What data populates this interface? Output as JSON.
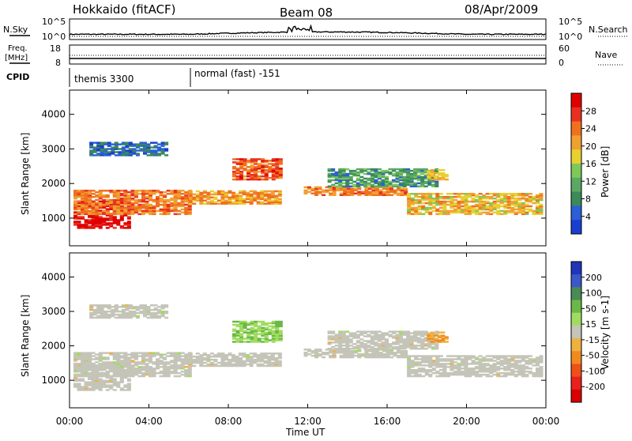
{
  "header": {
    "station": "Hokkaido (fitACF)",
    "beam": "Beam 08",
    "date": "08/Apr/2009"
  },
  "top_panels": {
    "nsky_label": "N.Sky",
    "nsearch_label": "N.Search",
    "log_top": "10^5",
    "log_bottom": "10^0",
    "freq_label_1": "Freq.",
    "freq_label_2": "[MHz]",
    "freq_ticks": [
      "18",
      "8"
    ],
    "nave_label": "Nave",
    "nave_ticks": [
      "60",
      "0"
    ],
    "cpid_label": "CPID",
    "cpid_1": "themis 3300",
    "cpid_2": "normal (fast) -151"
  },
  "colors": {
    "power": [
      "#1a3fd0",
      "#2b5fd8",
      "#3a8a5a",
      "#5aa862",
      "#7ec85a",
      "#e8d030",
      "#f0a030",
      "#f07020",
      "#e83020",
      "#e00000"
    ],
    "velocity": [
      "#2035b8",
      "#3a58c8",
      "#4a8a55",
      "#6ab848",
      "#a0dc60",
      "#c4c4b8",
      "#f0b040",
      "#f08a20",
      "#ee5018",
      "#e82020",
      "#d80000"
    ]
  },
  "chart_data": [
    {
      "type": "heatmap",
      "title": "Power",
      "ylabel": "Slant Range [km]",
      "xlabel": "Time UT",
      "x_ticks": [
        "00:00",
        "04:00",
        "08:00",
        "12:00",
        "16:00",
        "20:00",
        "00:00"
      ],
      "y_ticks": [
        "1000",
        "2000",
        "3000",
        "4000"
      ],
      "ylim": [
        200,
        4700
      ],
      "xlim_hours": [
        0,
        24
      ],
      "colorbar_label": "Power [dB]",
      "colorbar_ticks": [
        "4",
        "8",
        "12",
        "16",
        "20",
        "24",
        "28"
      ],
      "crange": [
        0,
        30
      ]
    },
    {
      "type": "heatmap",
      "title": "Velocity",
      "ylabel": "Slant Range [km]",
      "xlabel": "Time UT",
      "x_ticks": [
        "00:00",
        "04:00",
        "08:00",
        "12:00",
        "16:00",
        "20:00",
        "00:00"
      ],
      "y_ticks": [
        "1000",
        "2000",
        "3000",
        "4000"
      ],
      "ylim": [
        200,
        4700
      ],
      "xlim_hours": [
        0,
        24
      ],
      "colorbar_label": "Velocity [m s-1]",
      "colorbar_ticks": [
        "200",
        "100",
        "50",
        "15",
        "-15",
        "-50",
        "-100",
        "-200"
      ],
      "crange": [
        -250,
        250
      ]
    }
  ]
}
